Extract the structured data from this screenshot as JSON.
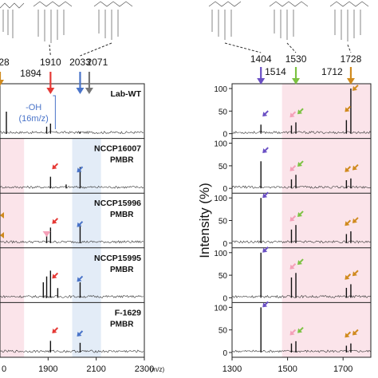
{
  "colors": {
    "red": "#e53935",
    "blue": "#4a74c9",
    "gray": "#777777",
    "orange": "#d08a1e",
    "purple": "#6a4fc4",
    "green": "#7cc242",
    "pink": "#f4a0b8",
    "bg_pink": "#fbe4ea",
    "bg_blue": "#e3ecf7"
  },
  "chart_data": [
    {
      "type": "line",
      "panel": "left",
      "title": "",
      "xlabel": "(m/z)",
      "ylabel": "",
      "xlim": [
        1700,
        2300
      ],
      "x_ticks": [
        "1900",
        "2100",
        "2300"
      ],
      "partial_tick": "0",
      "top_peak_labels": [
        "28",
        "1910",
        "1894",
        "2033",
        "2071"
      ],
      "annotation_oh": "-OH",
      "annotation_shift": "(16m/z)",
      "series": [
        {
          "label": "Lab-WT",
          "sublabel": "",
          "peaks": [
            [
              1894,
              18
            ],
            [
              1910,
              26
            ],
            [
              2033,
              5
            ]
          ]
        },
        {
          "label": "NCCP16007",
          "sublabel": "PMBR",
          "peaks": [
            [
              1910,
              30
            ],
            [
              1975,
              10
            ],
            [
              2033,
              55
            ]
          ]
        },
        {
          "label": "NCCP15996",
          "sublabel": "PMBR",
          "peaks": [
            [
              1894,
              25
            ],
            [
              1910,
              40
            ],
            [
              2033,
              50
            ]
          ]
        },
        {
          "label": "NCCP15995",
          "sublabel": "PMBR",
          "peaks": [
            [
              1880,
              40
            ],
            [
              1894,
              55
            ],
            [
              1910,
              70
            ],
            [
              1940,
              25
            ],
            [
              2033,
              40
            ]
          ]
        },
        {
          "label": "F-1629",
          "sublabel": "PMBR",
          "peaks": [
            [
              1910,
              30
            ],
            [
              2033,
              25
            ]
          ]
        }
      ]
    },
    {
      "type": "line",
      "panel": "right",
      "title": "",
      "xlabel": "",
      "ylabel": "Intensity (%)",
      "xlim": [
        1300,
        1800
      ],
      "ylim": [
        0,
        100
      ],
      "x_ticks": [
        "1300",
        "1500",
        "1700"
      ],
      "y_ticks": [
        "0",
        "50",
        "100"
      ],
      "top_peak_labels": [
        "1404",
        "1530",
        "1514",
        "1728",
        "1712"
      ],
      "series": [
        {
          "label": "Lab-WT",
          "peaks": [
            [
              1404,
              20
            ],
            [
              1514,
              18
            ],
            [
              1530,
              25
            ],
            [
              1712,
              30
            ],
            [
              1728,
              100
            ]
          ]
        },
        {
          "label": "NCCP16007",
          "peaks": [
            [
              1404,
              60
            ],
            [
              1514,
              20
            ],
            [
              1530,
              30
            ],
            [
              1712,
              18
            ],
            [
              1728,
              22
            ]
          ]
        },
        {
          "label": "NCCP15996",
          "peaks": [
            [
              1404,
              100
            ],
            [
              1514,
              30
            ],
            [
              1530,
              40
            ],
            [
              1712,
              20
            ],
            [
              1728,
              26
            ]
          ]
        },
        {
          "label": "NCCP15995",
          "peaks": [
            [
              1404,
              100
            ],
            [
              1514,
              45
            ],
            [
              1530,
              55
            ],
            [
              1712,
              22
            ],
            [
              1728,
              30
            ]
          ]
        },
        {
          "label": "F-1629",
          "peaks": [
            [
              1404,
              100
            ],
            [
              1514,
              20
            ],
            [
              1530,
              25
            ],
            [
              1712,
              15
            ],
            [
              1728,
              20
            ]
          ]
        }
      ]
    }
  ]
}
